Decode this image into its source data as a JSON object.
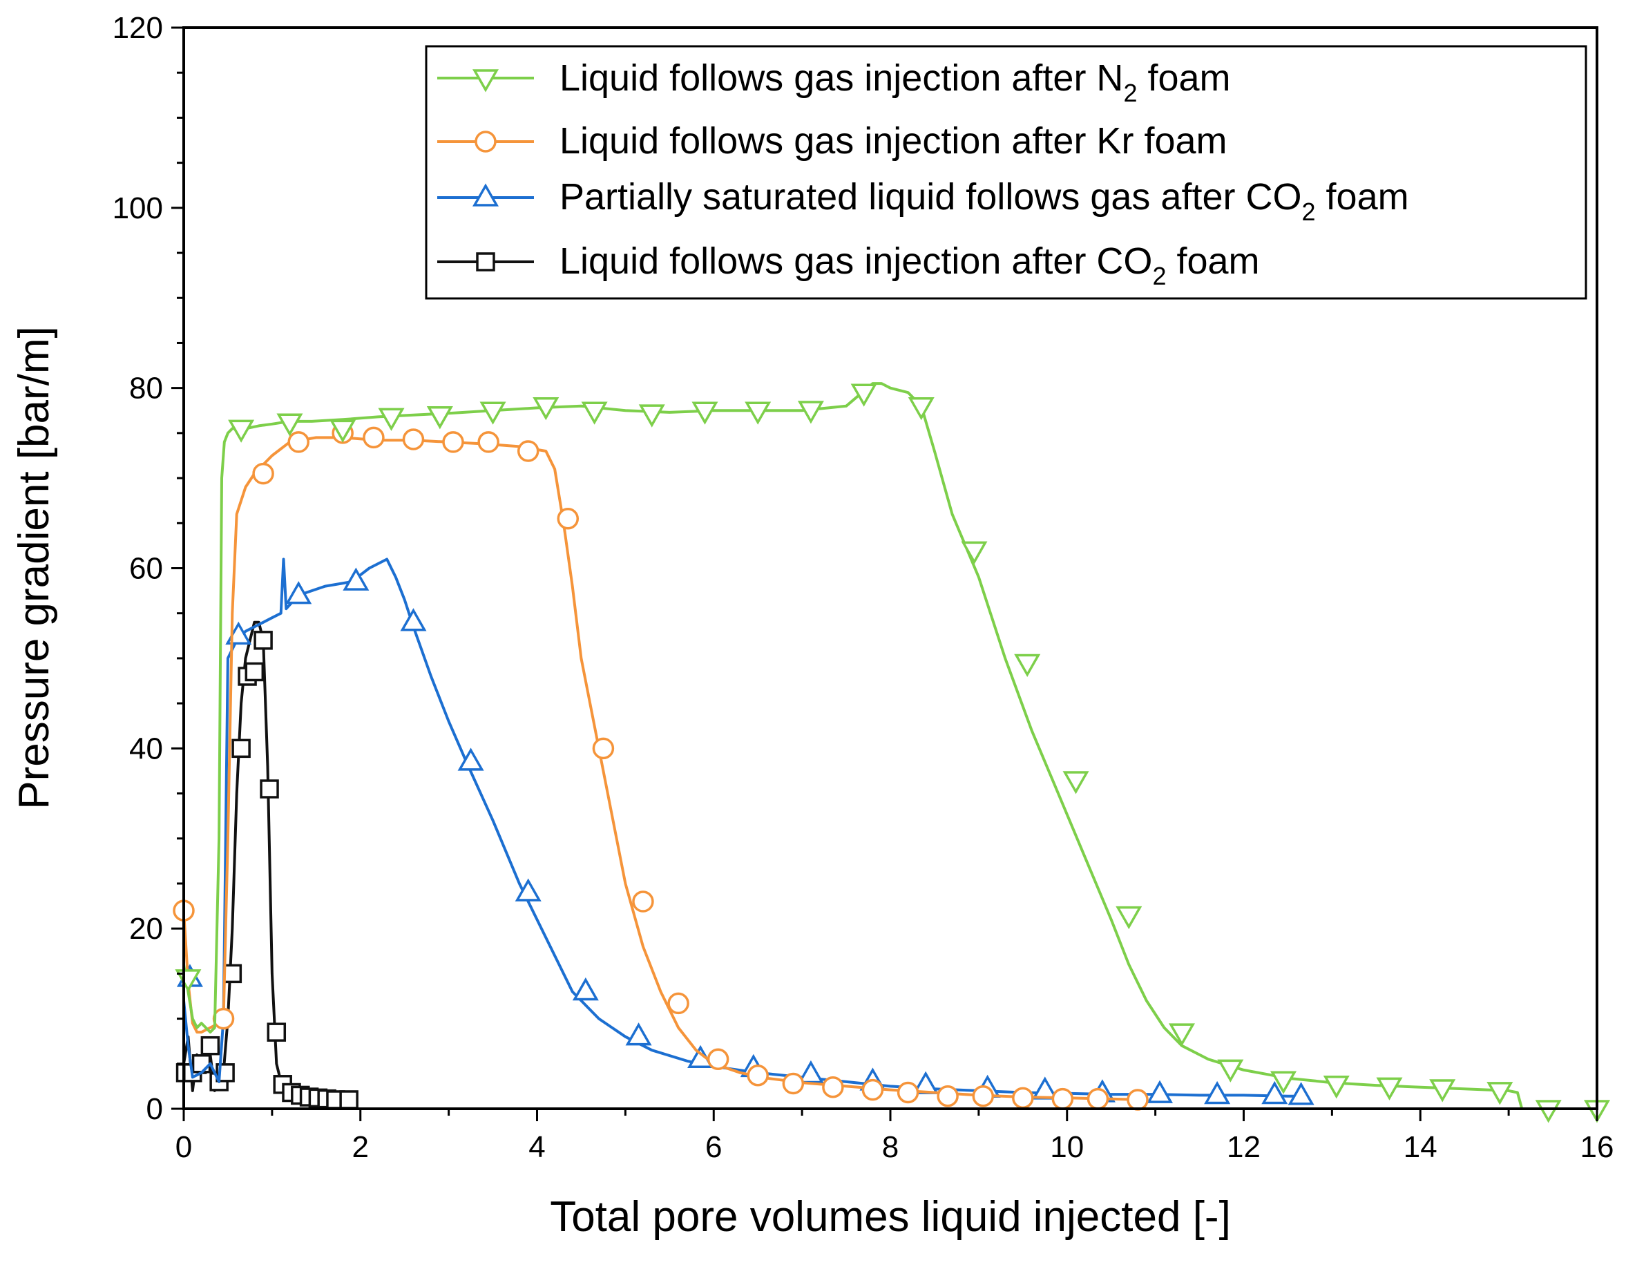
{
  "chart_data": {
    "type": "line",
    "title": "",
    "xlabel": "Total pore volumes liquid injected [-]",
    "ylabel": "Pressure gradient [bar/m]",
    "xlim": [
      0,
      16
    ],
    "ylim": [
      0,
      120
    ],
    "xticks": [
      "0",
      "2",
      "4",
      "6",
      "8",
      "10",
      "12",
      "14",
      "16"
    ],
    "yticks": [
      "0",
      "20",
      "40",
      "60",
      "80",
      "100",
      "120"
    ],
    "grid": false,
    "legend_position": "top-right",
    "series": [
      {
        "name": "Liquid follows gas injection after N2 foam",
        "legend": {
          "pre": "Liquid follows gas injection after N",
          "sub": "2",
          "post": " foam"
        },
        "color": "#7dcf4a",
        "marker": "triangle-down",
        "x": [
          0.0,
          0.05,
          0.1,
          0.15,
          0.2,
          0.25,
          0.3,
          0.35,
          0.4,
          0.43,
          0.46,
          0.5,
          0.55,
          0.6,
          0.7,
          0.85,
          1.0,
          1.2,
          1.45,
          1.8,
          2.2,
          2.6,
          3.0,
          3.5,
          4.0,
          4.5,
          5.0,
          5.5,
          6.0,
          6.5,
          7.0,
          7.5,
          7.8,
          7.9,
          8.0,
          8.2,
          8.35,
          8.5,
          8.7,
          9.0,
          9.3,
          9.6,
          9.9,
          10.2,
          10.5,
          10.7,
          10.9,
          11.1,
          11.3,
          11.6,
          12.0,
          12.5,
          13.0,
          13.5,
          14.0,
          14.5,
          15.0,
          15.1,
          15.15,
          15.2,
          16.0
        ],
        "y": [
          16,
          13,
          10,
          9,
          9.5,
          9,
          8.5,
          9,
          30,
          70,
          74,
          75,
          75.5,
          75.5,
          75.5,
          75.8,
          76,
          76.3,
          76.3,
          76.5,
          76.8,
          77,
          77.2,
          77.5,
          77.8,
          78,
          77.5,
          77.3,
          77.5,
          77.5,
          77.5,
          78,
          80.5,
          80.5,
          80,
          79.5,
          78,
          73,
          66,
          59,
          50,
          42,
          35,
          28,
          21,
          16,
          12,
          9,
          7,
          5.5,
          4.3,
          3.4,
          2.9,
          2.6,
          2.4,
          2.2,
          2.0,
          1.8,
          0,
          0,
          0
        ],
        "marker_x": [
          0.05,
          0.65,
          1.2,
          1.8,
          2.35,
          2.9,
          3.5,
          4.1,
          4.65,
          5.3,
          5.9,
          6.5,
          7.1,
          7.7,
          8.35,
          8.95,
          9.55,
          10.1,
          10.7,
          11.3,
          11.85,
          12.45,
          13.05,
          13.65,
          14.25,
          14.9,
          15.45,
          16.0
        ],
        "marker_y": [
          14.5,
          75.5,
          76.2,
          75.5,
          76.8,
          77,
          77.5,
          78,
          77.5,
          77.2,
          77.5,
          77.5,
          77.6,
          79.5,
          78,
          62,
          49.5,
          36.5,
          21.5,
          8.5,
          4.5,
          3.2,
          2.7,
          2.5,
          2.3,
          2.0,
          0,
          0
        ]
      },
      {
        "name": "Liquid follows gas injection after Kr foam",
        "legend": {
          "pre": "Liquid follows gas injection after Kr foam",
          "sub": "",
          "post": ""
        },
        "color": "#f5943a",
        "marker": "circle",
        "x": [
          0.0,
          0.05,
          0.1,
          0.15,
          0.2,
          0.3,
          0.4,
          0.45,
          0.5,
          0.55,
          0.6,
          0.7,
          0.8,
          0.9,
          1.0,
          1.2,
          1.5,
          1.8,
          2.2,
          2.6,
          3.0,
          3.4,
          3.8,
          4.1,
          4.2,
          4.3,
          4.4,
          4.5,
          4.6,
          4.7,
          4.8,
          4.9,
          5.0,
          5.2,
          5.4,
          5.6,
          5.8,
          6.0,
          6.3,
          6.6,
          7.0,
          7.5,
          8.0,
          8.5,
          9.0,
          9.5,
          10.0,
          10.5,
          10.85
        ],
        "y": [
          22,
          14,
          9.5,
          8.5,
          8.5,
          9,
          9.5,
          10,
          30,
          55,
          66,
          69,
          70.5,
          71.5,
          72.5,
          74,
          74.5,
          74.5,
          74.2,
          74.2,
          74,
          73.8,
          73.5,
          73,
          71,
          65,
          58,
          50,
          45,
          40,
          35,
          30,
          25,
          18,
          13,
          9,
          6.5,
          5,
          4,
          3.4,
          2.9,
          2.5,
          2.1,
          1.8,
          1.5,
          1.3,
          1.2,
          1.1,
          1.0
        ],
        "marker_x": [
          0.0,
          0.45,
          0.9,
          1.3,
          1.8,
          2.15,
          2.6,
          3.05,
          3.45,
          3.9,
          4.35,
          4.75,
          5.2,
          5.6,
          6.05,
          6.5,
          6.9,
          7.35,
          7.8,
          8.2,
          8.65,
          9.05,
          9.5,
          9.95,
          10.35,
          10.8
        ],
        "marker_y": [
          22,
          10,
          70.5,
          74,
          75,
          74.5,
          74.3,
          74,
          74,
          73,
          65.5,
          40,
          23,
          11.7,
          5.5,
          3.7,
          2.8,
          2.4,
          2.1,
          1.8,
          1.4,
          1.4,
          1.2,
          1.1,
          1.1,
          1.0
        ]
      },
      {
        "name": "Partially saturated liquid follows gas after CO2 foam",
        "legend": {
          "pre": "Partially saturated liquid follows gas after CO",
          "sub": "2",
          "post": " foam"
        },
        "color": "#1c6fd1",
        "marker": "triangle-up",
        "x": [
          0.0,
          0.05,
          0.1,
          0.2,
          0.3,
          0.4,
          0.45,
          0.5,
          0.55,
          0.6,
          0.7,
          0.8,
          0.9,
          1.0,
          1.1,
          1.13,
          1.16,
          1.3,
          1.6,
          1.9,
          2.1,
          2.3,
          2.4,
          2.5,
          2.6,
          2.8,
          3.0,
          3.2,
          3.5,
          3.8,
          4.1,
          4.4,
          4.7,
          5.0,
          5.3,
          5.7,
          6.0,
          6.5,
          7.0,
          7.5,
          8.0,
          8.5,
          9.0,
          9.5,
          10.0,
          10.5,
          11.0,
          11.5,
          12.0,
          12.5,
          12.65
        ],
        "y": [
          12,
          7,
          3.5,
          4,
          5,
          3,
          10,
          50,
          51,
          52,
          53,
          53.5,
          54,
          54.5,
          55,
          61,
          55.5,
          57,
          58,
          58.5,
          60,
          61,
          59,
          56.5,
          53.5,
          48,
          43,
          38.5,
          32,
          25,
          19,
          13,
          10,
          8,
          6.5,
          5.3,
          4.7,
          4,
          3.5,
          3,
          2.5,
          2.2,
          2,
          1.8,
          1.7,
          1.6,
          1.6,
          1.5,
          1.5,
          1.4,
          1.4
        ],
        "marker_x": [
          0.07,
          0.62,
          1.3,
          1.95,
          2.6,
          3.25,
          3.9,
          4.55,
          5.15,
          5.85,
          6.45,
          7.1,
          7.8,
          8.4,
          9.1,
          9.75,
          10.4,
          11.05,
          11.7,
          12.35,
          12.65
        ],
        "marker_y": [
          14.5,
          52.5,
          57,
          58.5,
          54,
          38.5,
          24,
          13,
          8,
          5.5,
          4.5,
          3.8,
          3.0,
          2.6,
          2.2,
          2.0,
          1.7,
          1.6,
          1.5,
          1.5,
          1.4
        ]
      },
      {
        "name": "Liquid follows gas injection after CO2 foam",
        "legend": {
          "pre": "Liquid follows gas injection after CO",
          "sub": "2",
          "post": " foam"
        },
        "color": "#111111",
        "marker": "square",
        "x": [
          0.0,
          0.05,
          0.1,
          0.15,
          0.2,
          0.25,
          0.3,
          0.35,
          0.4,
          0.45,
          0.5,
          0.55,
          0.6,
          0.65,
          0.7,
          0.75,
          0.8,
          0.85,
          0.9,
          0.95,
          1.0,
          1.05,
          1.1,
          1.15,
          1.2,
          1.3,
          1.5,
          1.7,
          1.9
        ],
        "y": [
          5,
          8,
          2,
          6,
          4,
          4,
          6,
          2,
          3,
          4,
          10,
          20,
          35,
          45,
          50,
          52,
          54,
          54,
          52,
          38,
          15,
          5,
          3,
          2,
          1.8,
          1.5,
          1.2,
          1.0,
          1.0
        ],
        "marker_x": [
          0.02,
          0.1,
          0.2,
          0.3,
          0.4,
          0.47,
          0.55,
          0.65,
          0.72,
          0.8,
          0.9,
          0.97,
          1.05,
          1.12,
          1.22,
          1.32,
          1.42,
          1.52,
          1.62,
          1.72,
          1.87
        ],
        "marker_y": [
          4,
          4,
          5,
          7,
          3,
          4,
          15,
          40,
          48,
          48.5,
          52,
          35.5,
          8.5,
          2.7,
          1.8,
          1.5,
          1.3,
          1.2,
          1.1,
          1.0,
          1.0
        ]
      }
    ]
  }
}
